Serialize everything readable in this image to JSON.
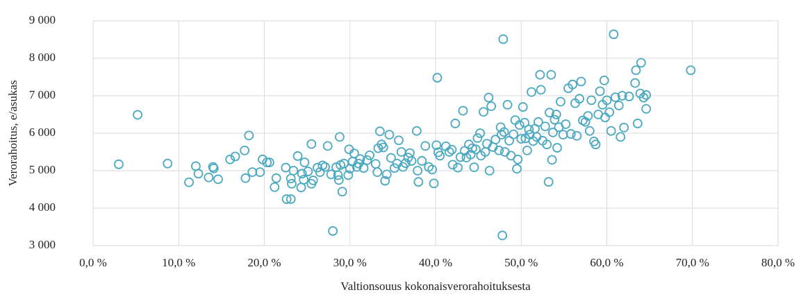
{
  "chart_data": {
    "type": "scatter",
    "xlabel": "Valtionsouus kokonaisverorahoituksesta",
    "ylabel": "Verorahoitus, e/asukas",
    "color": "#4aa9c0",
    "grid": true,
    "xlim": [
      0,
      80
    ],
    "ylim": [
      3000,
      9000
    ],
    "xticks": [
      {
        "value": 0,
        "label": "0,0 %"
      },
      {
        "value": 10,
        "label": "10,0 %"
      },
      {
        "value": 20,
        "label": "20,0 %"
      },
      {
        "value": 30,
        "label": "30,0 %"
      },
      {
        "value": 40,
        "label": "40,0 %"
      },
      {
        "value": 50,
        "label": "50,0 %"
      },
      {
        "value": 60,
        "label": "60,0 %"
      },
      {
        "value": 70,
        "label": "70,0 %"
      },
      {
        "value": 80,
        "label": "80,0 %"
      }
    ],
    "yticks": [
      {
        "value": 3000,
        "label": "3 000"
      },
      {
        "value": 4000,
        "label": "4 000"
      },
      {
        "value": 5000,
        "label": "5 000"
      },
      {
        "value": 6000,
        "label": "6 000"
      },
      {
        "value": 7000,
        "label": "7 000"
      },
      {
        "value": 8000,
        "label": "8 000"
      },
      {
        "value": 9000,
        "label": "9 000"
      }
    ],
    "x": [
      3.0,
      5.2,
      8.7,
      11.2,
      12.0,
      12.3,
      13.5,
      14.0,
      14.1,
      14.6,
      16.0,
      16.6,
      17.7,
      17.8,
      18.2,
      18.6,
      19.5,
      19.8,
      20.3,
      20.6,
      21.2,
      21.4,
      22.5,
      22.6,
      23.1,
      23.1,
      23.2,
      23.4,
      23.9,
      24.3,
      24.4,
      24.6,
      24.7,
      25.1,
      25.5,
      25.5,
      25.7,
      26.2,
      26.5,
      26.8,
      27.1,
      27.4,
      27.8,
      28.0,
      28.4,
      28.6,
      28.7,
      28.8,
      28.9,
      29.1,
      29.3,
      29.8,
      29.9,
      30.0,
      30.3,
      30.5,
      30.8,
      31.0,
      31.2,
      31.6,
      32.0,
      32.3,
      33.0,
      33.2,
      33.3,
      33.5,
      33.7,
      33.9,
      34.1,
      34.3,
      34.6,
      34.8,
      35.2,
      35.5,
      35.7,
      36.0,
      36.2,
      36.5,
      36.8,
      37.0,
      37.2,
      37.8,
      37.9,
      38.0,
      38.4,
      38.8,
      39.2,
      39.6,
      39.8,
      40.1,
      40.2,
      40.3,
      40.5,
      41.2,
      41.6,
      41.9,
      42.0,
      42.3,
      42.6,
      42.9,
      43.2,
      43.4,
      43.6,
      43.9,
      44.1,
      44.3,
      44.5,
      44.7,
      44.9,
      45.2,
      45.3,
      45.6,
      45.8,
      46.0,
      46.2,
      46.3,
      46.5,
      46.7,
      47.0,
      47.4,
      47.6,
      47.7,
      47.8,
      47.9,
      48.0,
      48.1,
      48.4,
      48.6,
      48.8,
      49.1,
      49.3,
      49.5,
      49.6,
      49.8,
      50.0,
      50.2,
      50.4,
      50.5,
      50.7,
      50.9,
      51.0,
      51.2,
      51.4,
      51.6,
      51.8,
      52.0,
      52.2,
      52.3,
      52.5,
      52.8,
      53.0,
      53.2,
      53.3,
      53.5,
      53.6,
      53.7,
      53.9,
      54.1,
      54.2,
      54.4,
      54.6,
      54.9,
      55.2,
      55.5,
      55.8,
      56.0,
      56.3,
      56.5,
      56.8,
      57.0,
      57.2,
      57.5,
      57.8,
      58.0,
      58.2,
      58.5,
      58.7,
      59.0,
      59.2,
      59.5,
      59.7,
      59.8,
      60.0,
      60.3,
      60.5,
      60.8,
      61.0,
      61.4,
      61.6,
      61.8,
      62.0,
      62.6,
      63.3,
      63.4,
      63.6,
      63.9,
      64.0,
      64.3,
      64.6,
      64.6,
      69.8
    ],
    "values": [
      5170,
      6490,
      5190,
      4690,
      5120,
      4920,
      4820,
      5100,
      5060,
      4770,
      5300,
      5380,
      5540,
      4800,
      5940,
      4960,
      4960,
      5300,
      5220,
      5220,
      4560,
      4800,
      5080,
      4240,
      4240,
      4790,
      4650,
      5000,
      5390,
      4550,
      4920,
      4760,
      5220,
      4980,
      5710,
      4650,
      4740,
      5080,
      4960,
      5140,
      5100,
      5660,
      4900,
      3390,
      5090,
      4880,
      4750,
      5900,
      5150,
      4440,
      5190,
      4880,
      5570,
      5050,
      5240,
      5460,
      5100,
      5190,
      5310,
      5070,
      5280,
      5410,
      5180,
      4960,
      5600,
      6050,
      5700,
      5620,
      4730,
      4900,
      5960,
      5340,
      5070,
      5190,
      5810,
      5500,
      5100,
      5200,
      5350,
      5470,
      5260,
      6060,
      5000,
      4700,
      5260,
      5660,
      5100,
      5030,
      4660,
      5680,
      7480,
      5490,
      5400,
      5650,
      5500,
      5560,
      5160,
      6260,
      5080,
      5360,
      6600,
      5530,
      5350,
      5700,
      5430,
      5600,
      5090,
      5570,
      5870,
      6000,
      5400,
      6570,
      5500,
      5720,
      6950,
      5000,
      6720,
      5630,
      5830,
      5540,
      6160,
      5960,
      3270,
      8510,
      6030,
      5500,
      6760,
      5800,
      5400,
      5970,
      6350,
      5050,
      5300,
      6220,
      5850,
      6700,
      6280,
      5860,
      5540,
      6100,
      5960,
      7100,
      5790,
      6120,
      5900,
      6300,
      7560,
      7160,
      5800,
      6180,
      5700,
      4700,
      6550,
      7560,
      5290,
      6020,
      6360,
      6500,
      5610,
      6160,
      6840,
      5960,
      6240,
      7200,
      5980,
      7300,
      6800,
      5930,
      6920,
      7380,
      6340,
      6300,
      6460,
      6060,
      6880,
      5780,
      5700,
      6500,
      7120,
      6760,
      7410,
      6420,
      6880,
      6560,
      6060,
      8640,
      6960,
      6740,
      5900,
      7000,
      6150,
      6980,
      7340,
      7680,
      6260,
      7060,
      7880,
      6950,
      7020,
      6650,
      7680
    ]
  }
}
